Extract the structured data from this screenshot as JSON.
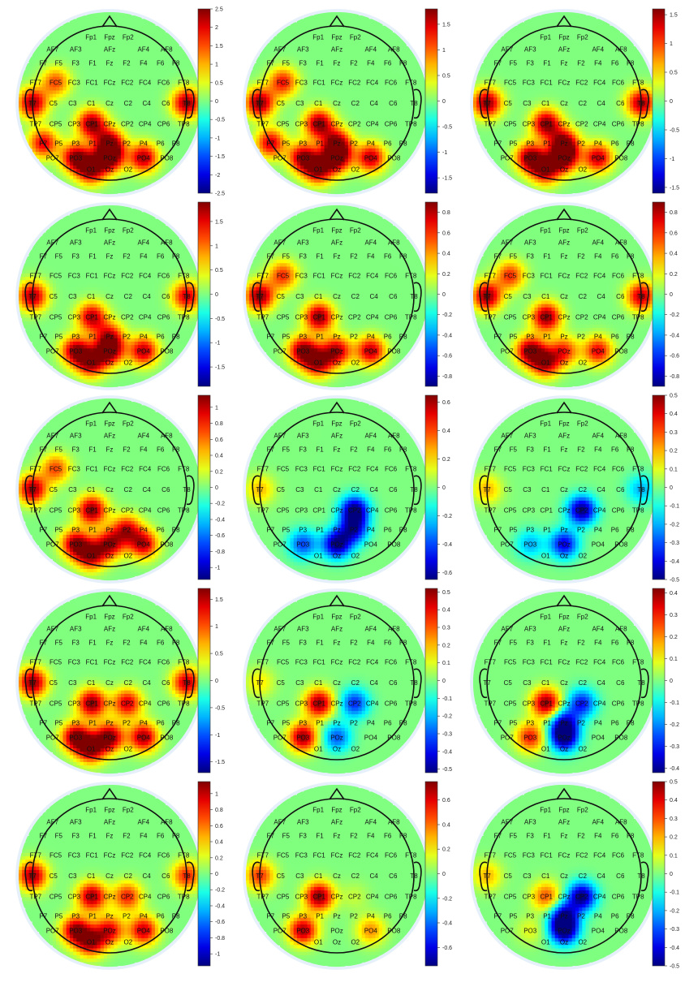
{
  "electrode_labels": {
    "Fp1": "Fp1",
    "Fpz": "Fpz",
    "Fp2": "Fp2",
    "AF7": "AF7",
    "AF3": "AF3",
    "AFz": "AFz",
    "AF4": "AF4",
    "AF8": "AF8",
    "F7": "F7",
    "F5": "F5",
    "F3": "F3",
    "F1": "F1",
    "Fz": "Fz",
    "F2": "F2",
    "F4": "F4",
    "F6": "F6",
    "F8": "F8",
    "FT7": "FT7",
    "FC5": "FC5",
    "FC3": "FC3",
    "FC1": "FC1",
    "FCz": "FCz",
    "FC2": "FC2",
    "FC4": "FC4",
    "FC6": "FC6",
    "FT8": "FT8",
    "T7": "T7",
    "C5": "C5",
    "C3": "C3",
    "C1": "C1",
    "Cz": "Cz",
    "C2": "C2",
    "C4": "C4",
    "C6": "C6",
    "T8": "T8",
    "TP7": "TP7",
    "CP5": "CP5",
    "CP3": "CP3",
    "CP1": "CP1",
    "CPz": "CPz",
    "CP2": "CP2",
    "CP4": "CP4",
    "CP6": "CP6",
    "TP8": "TP8",
    "P7": "P7",
    "P5": "P5",
    "P3": "P3",
    "P1": "P1",
    "Pz": "Pz",
    "P2": "P2",
    "P4": "P4",
    "P6": "P6",
    "P8": "P8",
    "PO7": "PO7",
    "PO3": "PO3",
    "POz": "POz",
    "PO4": "PO4",
    "PO8": "PO8",
    "O1": "O1",
    "Oz": "Oz",
    "O2": "O2"
  },
  "colors": {
    "colormap": "jet",
    "background": "#ffffff",
    "head_outline": "#111111"
  },
  "chart_data": [
    {
      "type": "heatmap",
      "panel": "r1c1",
      "colorbar": {
        "range": [
          -2.5,
          2.5
        ],
        "ticks": [
          "-2.5",
          "-2",
          "-1.5",
          "-1",
          "-0.5",
          "0",
          "0.5",
          "1",
          "1.5",
          "2",
          "2.5"
        ]
      },
      "hotspots": [
        {
          "at": "T7",
          "v": 2.4
        },
        {
          "at": "T8",
          "v": 2.4
        },
        {
          "at": "FC5",
          "v": 1.5
        },
        {
          "at": "CP1",
          "v": 2.5
        },
        {
          "at": "Pz",
          "v": 2.3
        },
        {
          "at": "POz",
          "v": 2.5
        },
        {
          "at": "PO3",
          "v": 2.4
        },
        {
          "at": "PO4",
          "v": 2.3
        },
        {
          "at": "O1",
          "v": 2.4
        },
        {
          "at": "P7",
          "v": 2.0
        }
      ]
    },
    {
      "type": "heatmap",
      "panel": "r1c2",
      "colorbar": {
        "range": [
          -1.8,
          1.8
        ],
        "ticks": [
          "-1.5",
          "-1",
          "-0.5",
          "0",
          "0.5",
          "1",
          "1.5"
        ]
      },
      "hotspots": [
        {
          "at": "T7",
          "v": 1.8
        },
        {
          "at": "FC5",
          "v": 1.3
        },
        {
          "at": "CP1",
          "v": 1.8
        },
        {
          "at": "Pz",
          "v": 1.6
        },
        {
          "at": "POz",
          "v": 1.8
        },
        {
          "at": "PO3",
          "v": 1.7
        },
        {
          "at": "PO4",
          "v": 1.6
        },
        {
          "at": "P7",
          "v": 1.5
        },
        {
          "at": "O1",
          "v": 1.7
        }
      ]
    },
    {
      "type": "heatmap",
      "panel": "r1c3",
      "colorbar": {
        "range": [
          -1.6,
          1.6
        ],
        "ticks": [
          "-1.5",
          "-1",
          "-0.5",
          "0",
          "0.5",
          "1",
          "1.5"
        ]
      },
      "hotspots": [
        {
          "at": "T7",
          "v": 1.6
        },
        {
          "at": "T8",
          "v": 1.5
        },
        {
          "at": "CP1",
          "v": 1.6
        },
        {
          "at": "Pz",
          "v": 1.5
        },
        {
          "at": "POz",
          "v": 1.6
        },
        {
          "at": "PO3",
          "v": 1.6
        },
        {
          "at": "PO4",
          "v": 1.4
        },
        {
          "at": "O1",
          "v": 1.5
        }
      ]
    },
    {
      "type": "heatmap",
      "panel": "r2c1",
      "colorbar": {
        "range": [
          -1.9,
          1.9
        ],
        "ticks": [
          "-1.5",
          "-1",
          "-0.5",
          "0",
          "0.5",
          "1",
          "1.5"
        ]
      },
      "hotspots": [
        {
          "at": "T7",
          "v": 1.8
        },
        {
          "at": "T8",
          "v": 1.6
        },
        {
          "at": "CP1",
          "v": 1.7
        },
        {
          "at": "Pz",
          "v": 1.3
        },
        {
          "at": "POz",
          "v": 1.8
        },
        {
          "at": "PO3",
          "v": 1.8
        },
        {
          "at": "PO4",
          "v": 1.7
        },
        {
          "at": "O1",
          "v": 1.7
        }
      ]
    },
    {
      "type": "heatmap",
      "panel": "r2c2",
      "colorbar": {
        "range": [
          -0.9,
          0.9
        ],
        "ticks": [
          "-0.8",
          "-0.6",
          "-0.4",
          "-0.2",
          "0",
          "0.2",
          "0.4",
          "0.6",
          "0.8"
        ]
      },
      "hotspots": [
        {
          "at": "T7",
          "v": 0.9
        },
        {
          "at": "FC5",
          "v": 0.6
        },
        {
          "at": "CP1",
          "v": 0.9
        },
        {
          "at": "PO3",
          "v": 0.9
        },
        {
          "at": "POz",
          "v": 0.8
        },
        {
          "at": "PO4",
          "v": 0.8
        },
        {
          "at": "O1",
          "v": 0.8
        }
      ]
    },
    {
      "type": "heatmap",
      "panel": "r2c3",
      "colorbar": {
        "range": [
          -0.9,
          0.9
        ],
        "ticks": [
          "-0.8",
          "-0.6",
          "-0.4",
          "-0.2",
          "0",
          "0.2",
          "0.4",
          "0.6",
          "0.8"
        ]
      },
      "hotspots": [
        {
          "at": "T7",
          "v": 0.9
        },
        {
          "at": "T8",
          "v": 0.8
        },
        {
          "at": "FC5",
          "v": 0.6
        },
        {
          "at": "CP1",
          "v": 0.9
        },
        {
          "at": "PO3",
          "v": 0.9
        },
        {
          "at": "POz",
          "v": 0.6
        },
        {
          "at": "PO4",
          "v": 0.7
        },
        {
          "at": "O1",
          "v": 0.8
        }
      ]
    },
    {
      "type": "heatmap",
      "panel": "r3c1",
      "colorbar": {
        "range": [
          -1.15,
          1.15
        ],
        "ticks": [
          "-1",
          "-0.8",
          "-0.6",
          "-0.4",
          "-0.2",
          "0",
          "0.2",
          "0.4",
          "0.6",
          "0.8",
          "1"
        ]
      },
      "hotspots": [
        {
          "at": "T7",
          "v": 1.1
        },
        {
          "at": "FC5",
          "v": 0.7
        },
        {
          "at": "CP1",
          "v": 1.15
        },
        {
          "at": "PO3",
          "v": 1.1
        },
        {
          "at": "POz",
          "v": 1.0
        },
        {
          "at": "PO4",
          "v": 1.0
        },
        {
          "at": "P2",
          "v": 0.9
        },
        {
          "at": "O1",
          "v": 1.0
        }
      ]
    },
    {
      "type": "heatmap",
      "panel": "r3c2",
      "colorbar": {
        "range": [
          -0.65,
          0.65
        ],
        "ticks": [
          "-0.6",
          "-0.4",
          "-0.2",
          "0",
          "0.2",
          "0.4",
          "0.6"
        ]
      },
      "hotspots": [
        {
          "at": "T7",
          "v": 0.25
        },
        {
          "at": "CP2",
          "v": -0.65
        },
        {
          "at": "POz",
          "v": -0.65
        },
        {
          "at": "PO3",
          "v": -0.4
        },
        {
          "at": "P2",
          "v": -0.5
        }
      ]
    },
    {
      "type": "heatmap",
      "panel": "r3c3",
      "colorbar": {
        "range": [
          -0.5,
          0.5
        ],
        "ticks": [
          "-0.5",
          "-0.4",
          "-0.3",
          "-0.2",
          "-0.1",
          "0",
          "0.1",
          "0.2",
          "0.3",
          "0.4",
          "0.5"
        ]
      },
      "hotspots": [
        {
          "at": "T7",
          "v": 0.2
        },
        {
          "at": "CP2",
          "v": -0.5
        },
        {
          "at": "POz",
          "v": -0.4
        },
        {
          "at": "PO3",
          "v": -0.2
        },
        {
          "at": "T8",
          "v": -0.2
        }
      ]
    },
    {
      "type": "heatmap",
      "panel": "r4c1",
      "colorbar": {
        "range": [
          -1.7,
          1.7
        ],
        "ticks": [
          "-1.5",
          "-1",
          "-0.5",
          "0",
          "0.5",
          "1",
          "1.5"
        ]
      },
      "hotspots": [
        {
          "at": "T7",
          "v": 1.7
        },
        {
          "at": "T8",
          "v": 1.5
        },
        {
          "at": "CP1",
          "v": 1.7
        },
        {
          "at": "CP2",
          "v": 1.4
        },
        {
          "at": "PO3",
          "v": 1.7
        },
        {
          "at": "POz",
          "v": 1.7
        },
        {
          "at": "PO4",
          "v": 1.6
        },
        {
          "at": "O1",
          "v": 1.6
        }
      ]
    },
    {
      "type": "heatmap",
      "panel": "r4c2",
      "colorbar": {
        "range": [
          -0.52,
          0.52
        ],
        "ticks": [
          "-0.5",
          "-0.4",
          "-0.3",
          "-0.2",
          "-0.1",
          "0",
          "0.1",
          "0.2",
          "0.3",
          "0.4",
          "0.5"
        ]
      },
      "hotspots": [
        {
          "at": "CP1",
          "v": 0.5
        },
        {
          "at": "PO3",
          "v": 0.5
        },
        {
          "at": "CP2",
          "v": -0.35
        },
        {
          "at": "POz",
          "v": -0.3
        },
        {
          "at": "T7",
          "v": 0.15
        }
      ]
    },
    {
      "type": "heatmap",
      "panel": "r4c3",
      "colorbar": {
        "range": [
          -0.42,
          0.42
        ],
        "ticks": [
          "-0.4",
          "-0.3",
          "-0.2",
          "-0.1",
          "0",
          "0.1",
          "0.2",
          "0.3",
          "0.4"
        ]
      },
      "hotspots": [
        {
          "at": "CP1",
          "v": 0.42
        },
        {
          "at": "PO3",
          "v": 0.3
        },
        {
          "at": "CP2",
          "v": -0.3
        },
        {
          "at": "POz",
          "v": -0.42
        },
        {
          "at": "Pz",
          "v": -0.3
        }
      ]
    },
    {
      "type": "heatmap",
      "panel": "r5c1",
      "colorbar": {
        "range": [
          -1.15,
          1.15
        ],
        "ticks": [
          "-1",
          "-0.8",
          "-0.6",
          "-0.4",
          "-0.2",
          "0",
          "0.2",
          "0.4",
          "0.6",
          "0.8",
          "1"
        ]
      },
      "hotspots": [
        {
          "at": "T7",
          "v": 1.1
        },
        {
          "at": "T8",
          "v": 0.8
        },
        {
          "at": "CP1",
          "v": 1.1
        },
        {
          "at": "CP2",
          "v": 0.8
        },
        {
          "at": "PO3",
          "v": 1.1
        },
        {
          "at": "POz",
          "v": 0.9
        },
        {
          "at": "PO4",
          "v": 1.0
        },
        {
          "at": "O1",
          "v": 1.0
        }
      ]
    },
    {
      "type": "heatmap",
      "panel": "r5c2",
      "colorbar": {
        "range": [
          -0.75,
          0.75
        ],
        "ticks": [
          "-0.6",
          "-0.4",
          "-0.2",
          "0",
          "0.2",
          "0.4",
          "0.6"
        ]
      },
      "hotspots": [
        {
          "at": "CP1",
          "v": 0.75
        },
        {
          "at": "PO3",
          "v": 0.7
        },
        {
          "at": "T7",
          "v": 0.5
        },
        {
          "at": "PO4",
          "v": 0.35
        },
        {
          "at": "CP2",
          "v": 0.1
        }
      ]
    },
    {
      "type": "heatmap",
      "panel": "r5c3",
      "colorbar": {
        "range": [
          -0.5,
          0.5
        ],
        "ticks": [
          "-0.5",
          "-0.4",
          "-0.3",
          "-0.2",
          "-0.1",
          "0",
          "0.1",
          "0.2",
          "0.3",
          "0.4",
          "0.5"
        ]
      },
      "hotspots": [
        {
          "at": "CP1",
          "v": 0.3
        },
        {
          "at": "CP2",
          "v": -0.5
        },
        {
          "at": "POz",
          "v": -0.5
        },
        {
          "at": "Pz",
          "v": -0.4
        },
        {
          "at": "T7",
          "v": 0.2
        },
        {
          "at": "PO3",
          "v": 0.1
        }
      ]
    }
  ]
}
